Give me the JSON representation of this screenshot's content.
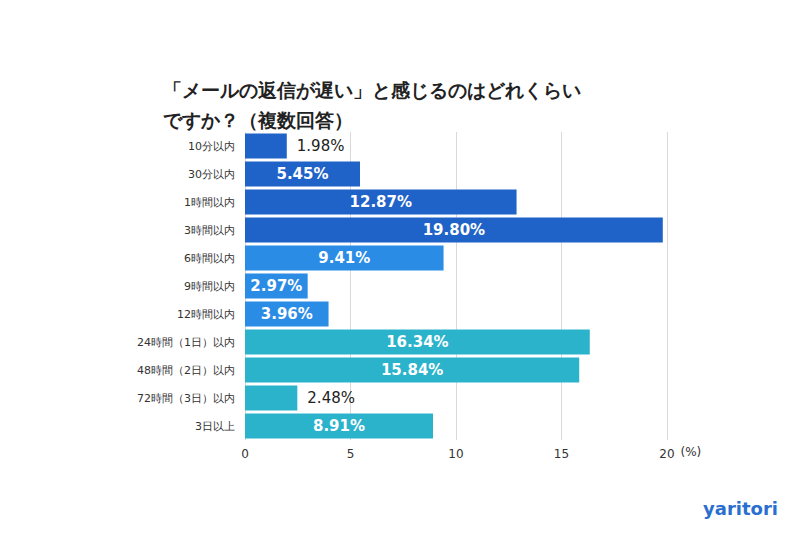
{
  "chart_data": {
    "type": "bar",
    "orientation": "horizontal",
    "title": "「メールの返信が遅い」と感じるのはどれくらい\nですか？（複数回答）",
    "categories": [
      "10分以内",
      "30分以内",
      "1時間以内",
      "3時間以内",
      "6時間以内",
      "9時間以内",
      "12時間以内",
      "24時間（1日）以内",
      "48時間（2日）以内",
      "72時間（3日）以内",
      "3日以上"
    ],
    "values": [
      1.98,
      5.45,
      12.87,
      19.8,
      9.41,
      2.97,
      3.96,
      16.34,
      15.84,
      2.48,
      8.91
    ],
    "value_labels": [
      "1.98%",
      "5.45%",
      "12.87%",
      "19.80%",
      "9.41%",
      "2.97%",
      "3.96%",
      "16.34%",
      "15.84%",
      "2.48%",
      "8.91%"
    ],
    "colors": [
      "#1f62c8",
      "#1f62c8",
      "#1f62c8",
      "#1f62c8",
      "#2b8ce6",
      "#2b8ce6",
      "#2b8ce6",
      "#2bb3cc",
      "#2bb3cc",
      "#2bb3cc",
      "#2bb3cc"
    ],
    "x_label": "(%)",
    "xlim": [
      0,
      20
    ],
    "xticks": [
      0,
      5,
      10,
      15,
      20
    ],
    "grid": true,
    "data_labels": true,
    "logo": "yaritori"
  }
}
